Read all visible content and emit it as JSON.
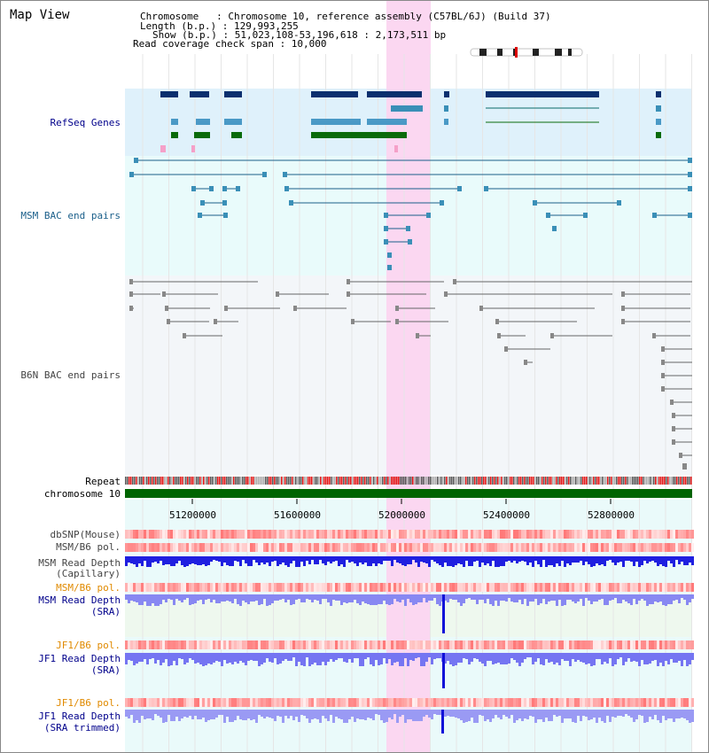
{
  "title": "Map View",
  "header": {
    "chromosome_line": "Chromosome   : Chromosome 10, reference assembly (C57BL/6J) (Build 37)",
    "length_line": "Length (b.p.) : 129,993,255",
    "show_line": "Show (b.p.) : 51,023,108-53,196,618 : 2,173,511 bp",
    "coverage_line": "Read coverage check span : 10,000"
  },
  "tracks": {
    "refseq": "RefSeq Genes",
    "msm_bac": "MSM BAC end pairs",
    "b6n_bac": "B6N BAC end pairs",
    "repeat": "Repeat",
    "chromosome": "chromosome 10",
    "dbsnp": "dbSNP(Mouse)",
    "msm_b6_pol_1": "MSM/B6 pol.",
    "msm_depth_cap_1": "MSM Read Depth",
    "msm_depth_cap_2": "(Capillary)",
    "msm_b6_pol_2": "MSM/B6 pol.",
    "msm_depth_sra_1": "MSM Read Depth",
    "msm_depth_sra_2": "(SRA)",
    "jf1_b6_pol_1": "JF1/B6 pol.",
    "jf1_depth_sra_1": "JF1 Read Depth",
    "jf1_depth_sra_2": "(SRA)",
    "jf1_b6_pol_2": "JF1/B6 pol.",
    "jf1_depth_trim_1": "JF1 Read Depth",
    "jf1_depth_trim_2": "(SRA trimmed)"
  },
  "axis": {
    "ticks": [
      "51200000",
      "51600000",
      "52000000",
      "52400000",
      "52800000"
    ]
  },
  "colors": {
    "refseq_bg": "#dff1fb",
    "bac_bg": "#e9fbfb",
    "b6n_bg": "#f3f6f9",
    "highlight": "#fbd7f1",
    "chrom_bar": "#006400",
    "depth_blue": "#1f1fe0"
  }
}
